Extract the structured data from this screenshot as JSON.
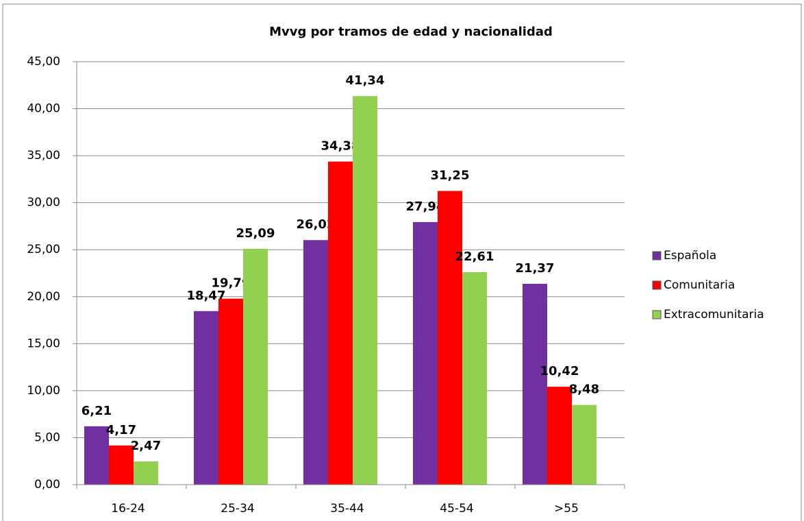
{
  "chart_data": {
    "type": "bar",
    "title": "Mvvg por tramos de edad y nacionalidad",
    "categories": [
      "16-24",
      "25-34",
      "35-44",
      "45-54",
      ">55"
    ],
    "series": [
      {
        "name": "Española",
        "color": "#7030a0",
        "values": [
          6.21,
          18.47,
          26.02,
          27.94,
          21.37
        ],
        "value_labels": [
          "6,21",
          "18,47",
          "26,02",
          "27,94",
          "21,37"
        ]
      },
      {
        "name": "Comunitaria",
        "color": "#ff0000",
        "values": [
          4.17,
          19.79,
          34.38,
          31.25,
          10.42
        ],
        "value_labels": [
          "4,17",
          "19,79",
          "34,38",
          "31,25",
          "10,42"
        ]
      },
      {
        "name": "Extracomunitaria",
        "color": "#92d050",
        "values": [
          2.47,
          25.09,
          41.34,
          22.61,
          8.48
        ],
        "value_labels": [
          "2,47",
          "25,09",
          "41,34",
          "22,61",
          "8,48"
        ]
      }
    ],
    "ylim": [
      0,
      45
    ],
    "yticks": [
      {
        "value": 0,
        "label": "0,00"
      },
      {
        "value": 5,
        "label": "5,00"
      },
      {
        "value": 10,
        "label": "10,00"
      },
      {
        "value": 15,
        "label": "15,00"
      },
      {
        "value": 20,
        "label": "20,00"
      },
      {
        "value": 25,
        "label": "25,00"
      },
      {
        "value": 30,
        "label": "30,00"
      },
      {
        "value": 35,
        "label": "35,00"
      },
      {
        "value": 40,
        "label": "40,00"
      },
      {
        "value": 45,
        "label": "45,00"
      }
    ],
    "grid": true,
    "legend": "right"
  }
}
